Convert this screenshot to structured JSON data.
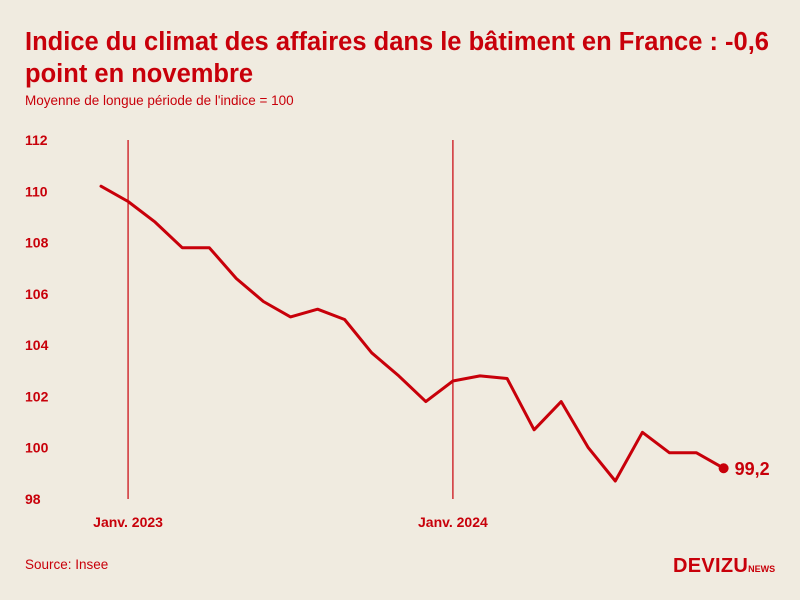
{
  "title": "Indice du climat des affaires dans le bâtiment en France : -0,6 point en novembre",
  "subtitle": "Moyenne de longue période de l'indice = 100",
  "source": "Source: Insee",
  "logo": {
    "main": "DEVIZU",
    "sub": "NEWS"
  },
  "colors": {
    "background": "#f0ebe0",
    "accent": "#c8000a"
  },
  "chart_data": {
    "type": "line",
    "x_start_label": "Janv. 2023",
    "x_tick_labels": [
      "Janv. 2023",
      "Janv. 2024"
    ],
    "y_ticks": [
      98,
      100,
      102,
      104,
      106,
      108,
      110,
      112
    ],
    "ylim": [
      98,
      112
    ],
    "grid": false,
    "series": [
      {
        "values": [
          110.2,
          109.6,
          108.8,
          107.8,
          107.8,
          106.6,
          105.7,
          105.1,
          105.4,
          105.0,
          103.7,
          102.8,
          101.8,
          102.6,
          102.8,
          102.7,
          100.7,
          101.8,
          100.0,
          98.7,
          100.6,
          99.8,
          99.8,
          99.2
        ]
      }
    ],
    "end_label": "99,2"
  }
}
